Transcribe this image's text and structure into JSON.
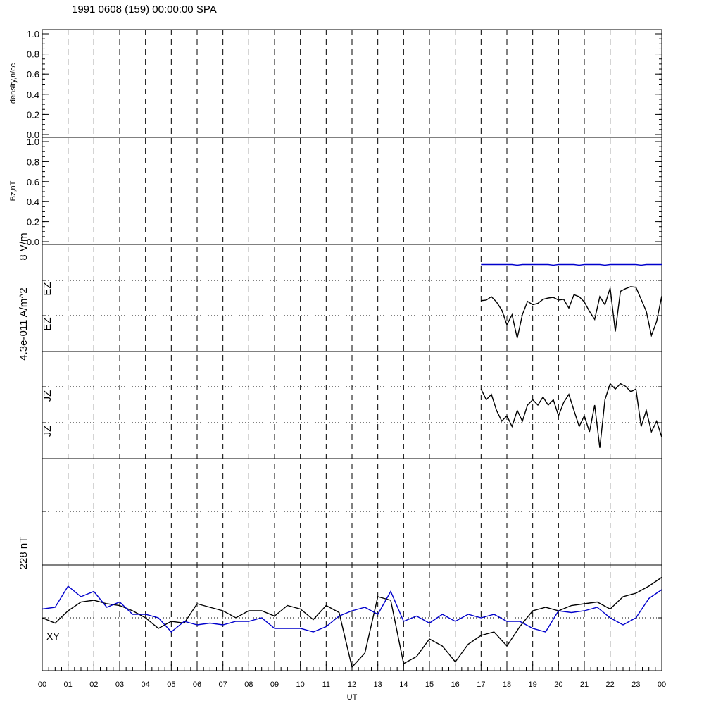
{
  "title": "1991 0608 (159) 00:00:00 SPA",
  "colors": {
    "black_trace": "#000000",
    "blue_trace": "#0000cc",
    "axis": "#000000"
  },
  "chart_data": [
    {
      "panel": "density",
      "type": "line",
      "ylabel": "density,n/cc",
      "ylim": [
        0,
        1
      ],
      "yticks": [
        "0.0",
        "0.2",
        "0.4",
        "0.6",
        "0.8",
        "1.0"
      ],
      "series": []
    },
    {
      "panel": "bz",
      "type": "line",
      "ylabel": "Bz,nT",
      "ylim": [
        0,
        1
      ],
      "yticks": [
        "0.0",
        "0.2",
        "0.4",
        "0.6",
        "0.8",
        "1.0"
      ],
      "series": []
    },
    {
      "panel": "ez",
      "type": "line",
      "ylabel": "8 V/m",
      "trace_labels": [
        "EZ",
        "EZ"
      ],
      "ylim": [
        -8,
        8
      ],
      "x": [
        17.0,
        17.2,
        17.4,
        17.6,
        17.8,
        18.0,
        18.2,
        18.4,
        18.6,
        18.8,
        19.0,
        19.2,
        19.4,
        19.6,
        19.8,
        20.0,
        20.2,
        20.4,
        20.6,
        20.8,
        21.0,
        21.2,
        21.4,
        21.6,
        21.8,
        22.0,
        22.2,
        22.4,
        22.6,
        22.8,
        23.0,
        23.2,
        23.4,
        23.6,
        23.8,
        24.0
      ],
      "series": [
        {
          "values": [
            -0.4,
            -0.3,
            0.2,
            -0.6,
            -1.8,
            -4.0,
            -2.5,
            -6.0,
            -2.5,
            -0.5,
            -1.0,
            -0.8,
            -0.2,
            0.0,
            0.1,
            -0.3,
            -0.2,
            -1.5,
            0.5,
            0.2,
            -0.6,
            -2.0,
            -3.2,
            0.2,
            -1.0,
            1.5,
            -5.0,
            1.0,
            1.4,
            1.7,
            1.6,
            -0.2,
            -2.0,
            -5.6,
            -3.5,
            0.3
          ]
        },
        {
          "values": [
            5.0,
            5.0,
            5.0,
            5.0,
            5.0,
            5.0,
            5.0,
            4.9,
            5.0,
            5.0,
            5.0,
            5.0,
            5.0,
            5.0,
            4.9,
            5.0,
            5.0,
            5.0,
            5.0,
            4.9,
            5.0,
            5.0,
            5.0,
            5.0,
            4.9,
            5.0,
            5.0,
            5.0,
            5.0,
            5.0,
            5.0,
            4.9,
            5.0,
            5.0,
            5.0,
            5.0
          ]
        }
      ]
    },
    {
      "panel": "jz",
      "type": "line",
      "ylabel": "4.3e-011 A/m^2",
      "trace_labels": [
        "JZ",
        "JZ"
      ],
      "ylim": [
        -1,
        1
      ],
      "x": [
        17.0,
        17.2,
        17.4,
        17.6,
        17.8,
        18.0,
        18.2,
        18.4,
        18.6,
        18.8,
        19.0,
        19.2,
        19.4,
        19.6,
        19.8,
        20.0,
        20.2,
        20.4,
        20.6,
        20.8,
        21.0,
        21.2,
        21.4,
        21.6,
        21.8,
        22.0,
        22.2,
        22.4,
        22.6,
        22.8,
        23.0,
        23.2,
        23.4,
        23.6,
        23.8,
        24.0
      ],
      "series": [
        {
          "values": [
            0.3,
            0.1,
            0.2,
            -0.1,
            -0.3,
            -0.2,
            -0.4,
            -0.1,
            -0.3,
            0.0,
            0.1,
            0.0,
            0.15,
            0.0,
            0.1,
            -0.2,
            0.05,
            0.2,
            -0.1,
            -0.4,
            -0.2,
            -0.5,
            0.0,
            -0.8,
            0.1,
            0.4,
            0.3,
            0.4,
            0.35,
            0.25,
            0.3,
            -0.4,
            -0.1,
            -0.5,
            -0.3,
            -0.6
          ]
        }
      ]
    },
    {
      "panel": "b",
      "type": "line",
      "ylabel": "228 nT",
      "trace_labels": [
        "X",
        "Y"
      ],
      "ylim": [
        -300,
        300
      ],
      "x": [
        0.0,
        0.5,
        1.0,
        1.5,
        2.0,
        2.5,
        3.0,
        3.5,
        4.0,
        4.5,
        5.0,
        5.5,
        6.0,
        6.5,
        7.0,
        7.5,
        8.0,
        8.5,
        9.0,
        9.5,
        10.0,
        10.5,
        11.0,
        11.5,
        12.0,
        12.5,
        13.0,
        13.5,
        14.0,
        14.5,
        15.0,
        15.5,
        16.0,
        16.5,
        17.0,
        17.5,
        18.0,
        18.5,
        19.0,
        19.5,
        20.0,
        20.5,
        21.0,
        21.5,
        22.0,
        22.5,
        23.0,
        23.5,
        24.0
      ],
      "series": [
        {
          "values": [
            0,
            -30,
            40,
            90,
            100,
            80,
            70,
            40,
            0,
            -60,
            -20,
            -30,
            80,
            60,
            40,
            0,
            40,
            40,
            10,
            70,
            50,
            -10,
            70,
            30,
            -280,
            -200,
            120,
            100,
            -260,
            -220,
            -120,
            -160,
            -250,
            -150,
            -100,
            -80,
            -160,
            -50,
            40,
            60,
            40,
            70,
            80,
            90,
            50,
            120,
            140,
            180,
            230
          ]
        },
        {
          "values": [
            50,
            60,
            180,
            120,
            150,
            60,
            90,
            20,
            20,
            0,
            -80,
            -20,
            -40,
            -30,
            -40,
            -20,
            -20,
            0,
            -60,
            -60,
            -60,
            -80,
            -50,
            10,
            40,
            60,
            20,
            150,
            -20,
            10,
            -30,
            20,
            -20,
            20,
            0,
            20,
            -20,
            -20,
            -60,
            -80,
            40,
            30,
            40,
            60,
            0,
            -40,
            0,
            110,
            160
          ]
        }
      ]
    }
  ],
  "xaxis": {
    "label": "UT",
    "range": [
      0,
      24
    ],
    "ticks": [
      "00",
      "01",
      "02",
      "03",
      "04",
      "05",
      "06",
      "07",
      "08",
      "09",
      "10",
      "11",
      "12",
      "13",
      "14",
      "15",
      "16",
      "17",
      "18",
      "19",
      "20",
      "21",
      "22",
      "23",
      "00"
    ]
  }
}
